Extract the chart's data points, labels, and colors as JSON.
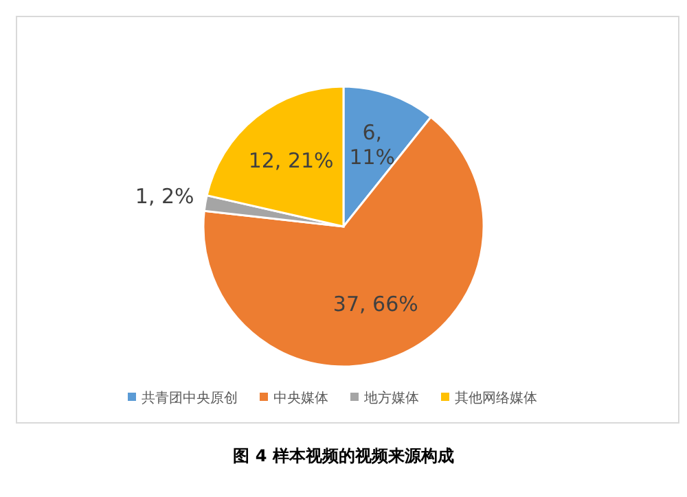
{
  "chart_data": {
    "type": "pie",
    "categories": [
      "共青团中央原创",
      "中央媒体",
      "地方媒体",
      "其他网络媒体"
    ],
    "values": [
      6,
      37,
      1,
      12
    ],
    "colors": [
      "#5b9bd5",
      "#ed7d31",
      "#a5a5a5",
      "#ffc000"
    ],
    "value_labels": [
      "6, 11%",
      "37, 66%",
      "1, 2%",
      "12, 21%"
    ],
    "legend": "bottom",
    "annotations": [
      "图 4 样本视频的视频来源构成"
    ]
  }
}
